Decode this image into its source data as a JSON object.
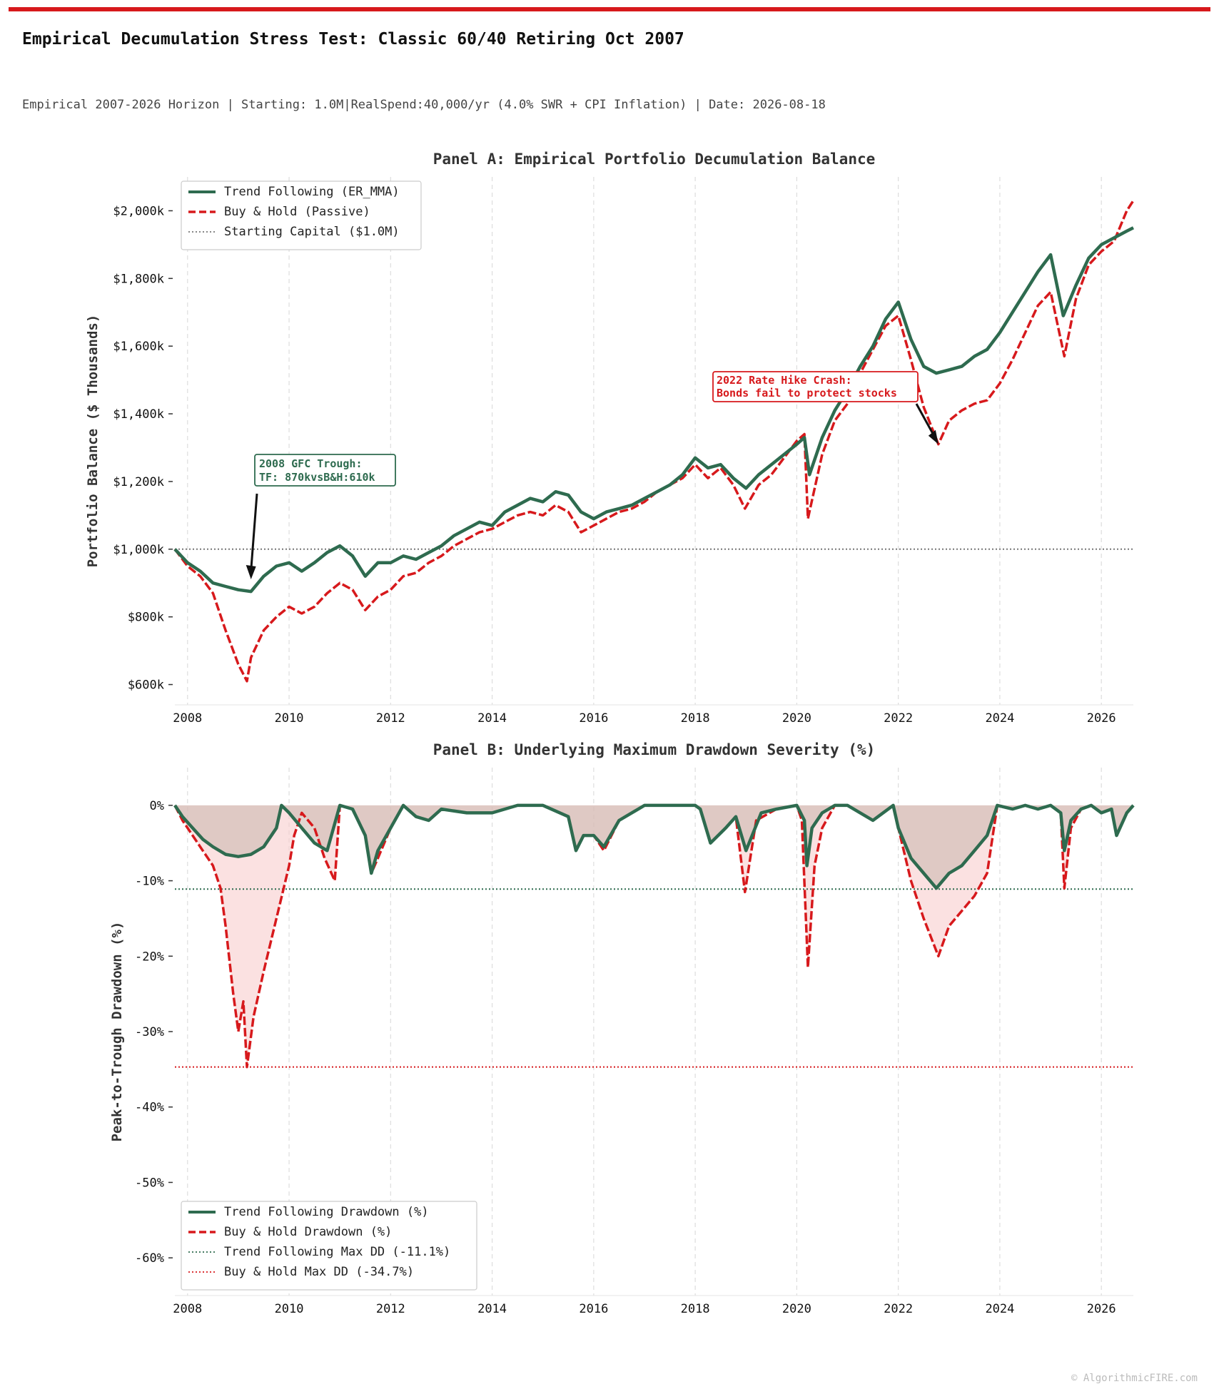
{
  "header": {
    "title": "Empirical Decumulation Stress Test: Classic 60/40 Retiring Oct 2007",
    "subtitle": "Empirical 2007-2026 Horizon | Starting: 1.0M|RealSpend:40,000/yr (4.0% SWR + CPI Inflation) | Date: 2026-08-18"
  },
  "footer": {
    "credit": "© AlgorithmicFIRE.com"
  },
  "colors": {
    "accent_bar": "#d7191c",
    "trend": "#2e6b4f",
    "buyhold": "#d7191c",
    "grid": "#dddddd",
    "fill_bh": "#f7c9c9",
    "fill_tf": "#c9b7ad"
  },
  "chart_data": [
    {
      "type": "line",
      "title": "Panel A: Empirical Portfolio Decumulation Balance",
      "xlabel": "",
      "ylabel": "Portfolio Balance ($ Thousands)",
      "xlim": [
        2007.75,
        2026.63
      ],
      "ylim": [
        540,
        2100
      ],
      "xticks": [
        2008,
        2010,
        2012,
        2014,
        2016,
        2018,
        2020,
        2022,
        2024,
        2026
      ],
      "yticks": [
        600,
        800,
        1000,
        1200,
        1400,
        1600,
        1800,
        2000
      ],
      "ytick_labels": [
        "$600k",
        "$800k",
        "$1,000k",
        "$1,200k",
        "$1,400k",
        "$1,600k",
        "$1,800k",
        "$2,000k"
      ],
      "grid": "vertical dashed",
      "legend_position": "top-left",
      "series": [
        {
          "name": "Trend Following (ER_MMA)",
          "style": "solid",
          "x": [
            2007.75,
            2008.0,
            2008.25,
            2008.5,
            2008.75,
            2009.0,
            2009.25,
            2009.5,
            2009.75,
            2010.0,
            2010.25,
            2010.5,
            2010.75,
            2011.0,
            2011.25,
            2011.5,
            2011.75,
            2012.0,
            2012.25,
            2012.5,
            2012.75,
            2013.0,
            2013.25,
            2013.5,
            2013.75,
            2014.0,
            2014.25,
            2014.5,
            2014.75,
            2015.0,
            2015.25,
            2015.5,
            2015.75,
            2016.0,
            2016.25,
            2016.5,
            2016.75,
            2017.0,
            2017.25,
            2017.5,
            2017.75,
            2018.0,
            2018.25,
            2018.5,
            2018.75,
            2019.0,
            2019.25,
            2019.5,
            2019.75,
            2020.0,
            2020.15,
            2020.25,
            2020.5,
            2020.75,
            2021.0,
            2021.25,
            2021.5,
            2021.75,
            2022.0,
            2022.25,
            2022.5,
            2022.75,
            2023.0,
            2023.25,
            2023.5,
            2023.75,
            2024.0,
            2024.25,
            2024.5,
            2024.75,
            2025.0,
            2025.25,
            2025.5,
            2025.75,
            2026.0,
            2026.25,
            2026.5,
            2026.63
          ],
          "y": [
            1000,
            960,
            935,
            900,
            890,
            880,
            875,
            920,
            950,
            960,
            935,
            960,
            990,
            1010,
            980,
            920,
            960,
            960,
            980,
            970,
            990,
            1010,
            1040,
            1060,
            1080,
            1070,
            1110,
            1130,
            1150,
            1140,
            1170,
            1160,
            1110,
            1090,
            1110,
            1120,
            1130,
            1150,
            1170,
            1190,
            1220,
            1270,
            1240,
            1250,
            1210,
            1180,
            1220,
            1250,
            1280,
            1310,
            1330,
            1220,
            1330,
            1410,
            1470,
            1540,
            1600,
            1680,
            1730,
            1620,
            1540,
            1520,
            1530,
            1540,
            1570,
            1590,
            1640,
            1700,
            1760,
            1820,
            1870,
            1690,
            1780,
            1860,
            1900,
            1920,
            1940,
            1950
          ]
        },
        {
          "name": "Buy & Hold (Passive)",
          "style": "dashed",
          "x": [
            2007.75,
            2008.0,
            2008.25,
            2008.5,
            2008.75,
            2008.9,
            2009.0,
            2009.17,
            2009.25,
            2009.5,
            2009.75,
            2010.0,
            2010.25,
            2010.5,
            2010.75,
            2011.0,
            2011.25,
            2011.5,
            2011.75,
            2012.0,
            2012.25,
            2012.5,
            2012.75,
            2013.0,
            2013.25,
            2013.5,
            2013.75,
            2014.0,
            2014.25,
            2014.5,
            2014.75,
            2015.0,
            2015.25,
            2015.5,
            2015.75,
            2016.0,
            2016.25,
            2016.5,
            2016.75,
            2017.0,
            2017.25,
            2017.5,
            2017.75,
            2018.0,
            2018.25,
            2018.5,
            2018.75,
            2018.98,
            2019.25,
            2019.5,
            2019.75,
            2020.0,
            2020.15,
            2020.22,
            2020.5,
            2020.75,
            2021.0,
            2021.25,
            2021.5,
            2021.75,
            2022.0,
            2022.25,
            2022.5,
            2022.79,
            2023.0,
            2023.25,
            2023.5,
            2023.75,
            2024.0,
            2024.25,
            2024.5,
            2024.75,
            2025.0,
            2025.27,
            2025.5,
            2025.75,
            2026.0,
            2026.25,
            2026.5,
            2026.63
          ],
          "y": [
            1000,
            950,
            920,
            870,
            760,
            700,
            660,
            610,
            680,
            760,
            800,
            830,
            810,
            830,
            870,
            900,
            880,
            820,
            860,
            880,
            920,
            930,
            960,
            980,
            1010,
            1030,
            1050,
            1060,
            1080,
            1100,
            1110,
            1100,
            1130,
            1110,
            1050,
            1070,
            1090,
            1110,
            1120,
            1140,
            1170,
            1190,
            1210,
            1250,
            1210,
            1240,
            1190,
            1120,
            1190,
            1220,
            1270,
            1320,
            1340,
            1090,
            1280,
            1380,
            1430,
            1520,
            1590,
            1660,
            1690,
            1560,
            1420,
            1310,
            1380,
            1410,
            1430,
            1440,
            1490,
            1560,
            1640,
            1720,
            1760,
            1570,
            1740,
            1840,
            1880,
            1910,
            2000,
            2030
          ]
        },
        {
          "name": "Starting Capital ($1.0M)",
          "style": "dotted",
          "constant": 1000
        }
      ],
      "annotations": [
        {
          "label": "2008 GFC Trough:",
          "label2": "TF: 870kvsB&H:610k",
          "x": 2009.25,
          "y": 890,
          "color": "#2e6b4f"
        },
        {
          "label": "2022 Rate Hike Crash:",
          "label2": "Bonds fail to protect stocks",
          "x": 2022.79,
          "y": 1310,
          "color": "#d7191c"
        }
      ]
    },
    {
      "type": "area",
      "title": "Panel B: Underlying Maximum Drawdown Severity (%)",
      "xlabel": "",
      "ylabel": "Peak-to-Trough Drawdown (%)",
      "xlim": [
        2007.75,
        2026.63
      ],
      "ylim": [
        -65,
        5
      ],
      "xticks": [
        2008,
        2010,
        2012,
        2014,
        2016,
        2018,
        2020,
        2022,
        2024,
        2026
      ],
      "yticks": [
        0,
        -10,
        -20,
        -30,
        -40,
        -50,
        -60
      ],
      "ytick_labels": [
        "0%",
        "-10%",
        "-20%",
        "-30%",
        "-40%",
        "-50%",
        "-60%"
      ],
      "grid": "vertical dashed",
      "legend_position": "bottom-left",
      "series": [
        {
          "name": "Trend Following Drawdown (%)",
          "style": "solid",
          "x": [
            2007.75,
            2007.9,
            2008.1,
            2008.3,
            2008.5,
            2008.75,
            2009.0,
            2009.25,
            2009.5,
            2009.75,
            2009.85,
            2010.0,
            2010.25,
            2010.5,
            2010.75,
            2011.0,
            2011.25,
            2011.5,
            2011.62,
            2011.75,
            2012.0,
            2012.25,
            2012.5,
            2012.75,
            2013.0,
            2013.5,
            2014.0,
            2014.5,
            2015.0,
            2015.5,
            2015.65,
            2015.8,
            2016.0,
            2016.2,
            2016.5,
            2017.0,
            2017.5,
            2018.0,
            2018.1,
            2018.3,
            2018.6,
            2018.8,
            2019.0,
            2019.3,
            2019.6,
            2020.0,
            2020.15,
            2020.2,
            2020.3,
            2020.5,
            2020.75,
            2021.0,
            2021.5,
            2021.9,
            2022.0,
            2022.25,
            2022.5,
            2022.75,
            2023.0,
            2023.25,
            2023.5,
            2023.75,
            2023.95,
            2024.25,
            2024.5,
            2024.75,
            2025.0,
            2025.2,
            2025.27,
            2025.4,
            2025.6,
            2025.8,
            2026.0,
            2026.2,
            2026.3,
            2026.5,
            2026.63
          ],
          "y": [
            0,
            -1.5,
            -3,
            -4.5,
            -5.5,
            -6.5,
            -6.8,
            -6.5,
            -5.5,
            -3,
            0,
            -1,
            -3,
            -5,
            -6,
            0,
            -0.5,
            -4,
            -9,
            -6,
            -3,
            0,
            -1.5,
            -2,
            -0.5,
            -1,
            -1,
            0,
            0,
            -1.5,
            -6,
            -4,
            -4,
            -5.5,
            -2,
            0,
            0,
            0,
            -0.5,
            -5,
            -3,
            -1.5,
            -6,
            -1,
            -0.5,
            0,
            -2,
            -8,
            -3,
            -1,
            0,
            0,
            -2,
            0,
            -3,
            -7,
            -9,
            -11,
            -9,
            -8,
            -6,
            -4,
            0,
            -0.5,
            0,
            -0.5,
            0,
            -1,
            -6,
            -2,
            -0.5,
            0,
            -1,
            -0.5,
            -4,
            -1,
            0
          ]
        },
        {
          "name": "Buy & Hold Drawdown (%)",
          "style": "dashed",
          "x": [
            2007.75,
            2007.9,
            2008.1,
            2008.3,
            2008.5,
            2008.65,
            2008.75,
            2008.9,
            2009.0,
            2009.1,
            2009.17,
            2009.3,
            2009.5,
            2009.75,
            2010.0,
            2010.1,
            2010.25,
            2010.5,
            2010.7,
            2010.9,
            2011.0,
            2011.25,
            2011.5,
            2011.62,
            2011.75,
            2012.0,
            2012.25,
            2012.5,
            2012.75,
            2013.0,
            2013.5,
            2014.0,
            2014.5,
            2015.0,
            2015.5,
            2015.65,
            2015.8,
            2016.0,
            2016.2,
            2016.5,
            2017.0,
            2017.5,
            2018.0,
            2018.1,
            2018.3,
            2018.6,
            2018.8,
            2018.98,
            2019.2,
            2019.6,
            2020.0,
            2020.1,
            2020.22,
            2020.35,
            2020.5,
            2020.75,
            2021.0,
            2021.5,
            2021.9,
            2022.0,
            2022.25,
            2022.5,
            2022.79,
            2023.0,
            2023.25,
            2023.5,
            2023.75,
            2023.95,
            2024.25,
            2024.5,
            2024.75,
            2025.0,
            2025.2,
            2025.27,
            2025.4,
            2025.6,
            2025.8,
            2026.0,
            2026.2,
            2026.3,
            2026.5,
            2026.63
          ],
          "y": [
            0,
            -2,
            -4,
            -6,
            -8,
            -11,
            -16,
            -25,
            -30,
            -26,
            -34.7,
            -28,
            -22,
            -15,
            -8,
            -4,
            -1,
            -3,
            -7,
            -10,
            0,
            -0.5,
            -4,
            -9,
            -7,
            -3,
            0,
            -1.5,
            -2,
            -0.5,
            -1,
            -1,
            0,
            0,
            -1.5,
            -6,
            -4,
            -4,
            -6,
            -2,
            0,
            0,
            0,
            -0.5,
            -5,
            -3,
            -1.5,
            -11.5,
            -2,
            -0.5,
            0,
            -2,
            -21.5,
            -8,
            -3,
            0,
            0,
            -2,
            0,
            -3,
            -10,
            -15,
            -20,
            -16,
            -14,
            -12,
            -9,
            0,
            -0.5,
            0,
            -0.5,
            0,
            -1,
            -11,
            -3,
            -0.5,
            0,
            -1,
            -0.5,
            -4,
            -1,
            0
          ]
        },
        {
          "name": "Trend Following Max DD (-11.1%)",
          "style": "dotted",
          "constant": -11.1
        },
        {
          "name": "Buy & Hold Max DD (-34.7%)",
          "style": "dotted",
          "constant": -34.7
        }
      ]
    }
  ]
}
